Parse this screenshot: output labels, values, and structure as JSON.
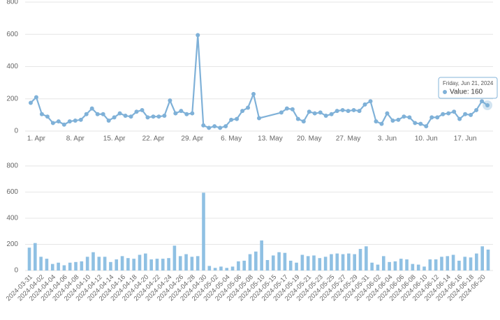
{
  "chart_data": [
    {
      "type": "line",
      "color": "#7fb1d8",
      "x": [
        "2024-03-31",
        "2024-04-01",
        "2024-04-02",
        "2024-04-03",
        "2024-04-04",
        "2024-04-05",
        "2024-04-06",
        "2024-04-07",
        "2024-04-08",
        "2024-04-09",
        "2024-04-10",
        "2024-04-11",
        "2024-04-12",
        "2024-04-13",
        "2024-04-14",
        "2024-04-15",
        "2024-04-16",
        "2024-04-17",
        "2024-04-18",
        "2024-04-19",
        "2024-04-20",
        "2024-04-21",
        "2024-04-22",
        "2024-04-23",
        "2024-04-24",
        "2024-04-25",
        "2024-04-26",
        "2024-04-27",
        "2024-04-28",
        "2024-04-29",
        "2024-04-30",
        "2024-05-01",
        "2024-05-02",
        "2024-05-03",
        "2024-05-04",
        "2024-05-05",
        "2024-05-06",
        "2024-05-07",
        "2024-05-08",
        "2024-05-09",
        "2024-05-10",
        "2024-05-11",
        "2024-05-15",
        "2024-05-16",
        "2024-05-17",
        "2024-05-18",
        "2024-05-19",
        "2024-05-20",
        "2024-05-21",
        "2024-05-22",
        "2024-05-23",
        "2024-05-24",
        "2024-05-25",
        "2024-05-26",
        "2024-05-27",
        "2024-05-28",
        "2024-05-29",
        "2024-05-30",
        "2024-05-31",
        "2024-06-01",
        "2024-06-02",
        "2024-06-03",
        "2024-06-04",
        "2024-06-05",
        "2024-06-06",
        "2024-06-07",
        "2024-06-08",
        "2024-06-09",
        "2024-06-10",
        "2024-06-11",
        "2024-06-12",
        "2024-06-13",
        "2024-06-14",
        "2024-06-15",
        "2024-06-16",
        "2024-06-17",
        "2024-06-18",
        "2024-06-19",
        "2024-06-20",
        "2024-06-21"
      ],
      "values": [
        175,
        210,
        105,
        90,
        50,
        60,
        40,
        60,
        65,
        70,
        105,
        140,
        105,
        105,
        65,
        85,
        110,
        95,
        90,
        120,
        130,
        85,
        90,
        90,
        95,
        190,
        110,
        125,
        105,
        110,
        595,
        35,
        20,
        30,
        20,
        30,
        70,
        75,
        125,
        145,
        230,
        80,
        115,
        140,
        135,
        75,
        60,
        120,
        110,
        115,
        95,
        105,
        125,
        130,
        125,
        130,
        125,
        165,
        185,
        60,
        45,
        110,
        65,
        70,
        90,
        85,
        50,
        45,
        30,
        85,
        85,
        105,
        110,
        120,
        75,
        105,
        100,
        130,
        185,
        160
      ],
      "xlim": [
        "2024-03-30",
        "2024-06-22"
      ],
      "xticks": [
        {
          "value": "2024-04-01",
          "label": "1. Apr"
        },
        {
          "value": "2024-04-08",
          "label": "8. Apr"
        },
        {
          "value": "2024-04-15",
          "label": "15. Apr"
        },
        {
          "value": "2024-04-22",
          "label": "22. Apr"
        },
        {
          "value": "2024-04-29",
          "label": "29. Apr"
        },
        {
          "value": "2024-05-06",
          "label": "6. May"
        },
        {
          "value": "2024-05-13",
          "label": "13. May"
        },
        {
          "value": "2024-05-20",
          "label": "20. May"
        },
        {
          "value": "2024-05-27",
          "label": "27. May"
        },
        {
          "value": "2024-06-03",
          "label": "3. Jun"
        },
        {
          "value": "2024-06-10",
          "label": "10. Jun"
        },
        {
          "value": "2024-06-17",
          "label": "17. Jun"
        }
      ],
      "ylim": [
        0,
        800
      ],
      "yticks": [
        0,
        200,
        400,
        600,
        800
      ],
      "grid": true,
      "tooltip": {
        "date": "Friday, Jun 21, 2024",
        "text": "Value: 160"
      }
    },
    {
      "type": "bar",
      "color": "#8fc0e3",
      "categories": [
        "2024-03-31",
        null,
        "2024-04-02",
        null,
        "2024-04-04",
        null,
        "2024-04-06",
        null,
        "2024-04-08",
        null,
        "2024-04-10",
        null,
        "2024-04-12",
        null,
        "2024-04-14",
        null,
        "2024-04-16",
        null,
        "2024-04-18",
        null,
        "2024-04-20",
        null,
        "2024-04-22",
        null,
        "2024-04-24",
        null,
        "2024-04-26",
        null,
        "2024-04-28",
        null,
        "2024-04-30",
        null,
        "2024-05-02",
        null,
        "2024-05-04",
        null,
        "2024-05-06",
        null,
        "2024-05-08",
        null,
        "2024-05-10",
        null,
        "2024-05-15",
        null,
        "2024-05-17",
        null,
        "2024-05-19",
        null,
        "2024-05-21",
        null,
        "2024-05-23",
        null,
        "2024-05-25",
        null,
        "2024-05-27",
        null,
        "2024-05-29",
        null,
        "2024-05-31",
        null,
        "2024-06-02",
        null,
        "2024-06-04",
        null,
        "2024-06-06",
        null,
        "2024-06-08",
        null,
        "2024-06-10",
        null,
        "2024-06-12",
        null,
        "2024-06-14",
        null,
        "2024-06-16",
        null,
        "2024-06-18",
        null,
        "2024-06-20",
        null
      ],
      "values": [
        175,
        210,
        105,
        90,
        50,
        60,
        40,
        60,
        65,
        70,
        105,
        140,
        105,
        105,
        65,
        85,
        110,
        95,
        90,
        120,
        130,
        85,
        90,
        90,
        95,
        190,
        110,
        125,
        105,
        110,
        595,
        35,
        20,
        30,
        20,
        30,
        70,
        75,
        125,
        145,
        230,
        80,
        115,
        140,
        135,
        75,
        60,
        120,
        110,
        115,
        95,
        105,
        125,
        130,
        125,
        130,
        125,
        165,
        185,
        60,
        45,
        110,
        65,
        70,
        90,
        85,
        50,
        45,
        30,
        85,
        85,
        105,
        110,
        120,
        75,
        105,
        100,
        130,
        185,
        160
      ],
      "ylim": [
        0,
        800
      ],
      "yticks": [
        0,
        200,
        400,
        600,
        800
      ],
      "grid": true
    }
  ]
}
